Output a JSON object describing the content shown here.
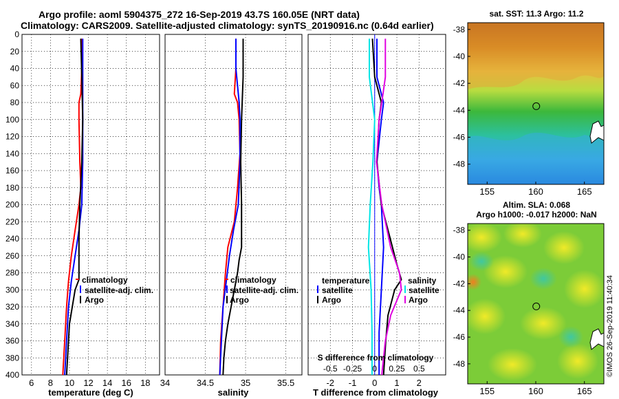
{
  "title": {
    "line1": "Argo profile: aoml 5904375_272 16-Sep-2019 43.7S 160.05E (NRT data)",
    "line2": "Climatology: CARS2009. Satellite-adjusted climatology: synTS_20190916.nc (0.64d earlier)"
  },
  "chart_data": [
    {
      "type": "line",
      "id": "temperature",
      "xlabel": "temperature (deg C)",
      "ylabel": "",
      "xlim": [
        5,
        19.5
      ],
      "ylim": [
        400,
        0
      ],
      "xticks": [
        "6",
        "8",
        "10",
        "12",
        "14",
        "16",
        "18"
      ],
      "yticks": [
        "0",
        "20",
        "40",
        "60",
        "80",
        "100",
        "120",
        "140",
        "160",
        "180",
        "200",
        "220",
        "240",
        "260",
        "280",
        "300",
        "320",
        "340",
        "360",
        "380",
        "400"
      ],
      "legend": [
        "climatology",
        "satellite-adj. clim.",
        "Argo"
      ],
      "series": [
        {
          "name": "climatology",
          "color": "#ff0000",
          "depth": [
            5,
            40,
            70,
            80,
            100,
            150,
            180,
            200,
            230,
            260,
            290,
            320,
            360,
            400
          ],
          "values": [
            11.3,
            11.3,
            11.2,
            11.0,
            11.0,
            11.1,
            11.2,
            11.0,
            10.6,
            10.2,
            9.9,
            9.7,
            9.5,
            9.3
          ]
        },
        {
          "name": "satellite-adj. clim.",
          "color": "#0000ff",
          "depth": [
            5,
            40,
            80,
            100,
            150,
            200,
            230,
            260,
            290,
            320,
            360,
            400
          ],
          "values": [
            11.4,
            11.4,
            11.4,
            11.4,
            11.4,
            11.3,
            11.0,
            10.6,
            10.2,
            9.9,
            9.7,
            9.5
          ]
        },
        {
          "name": "Argo",
          "color": "#000000",
          "depth": [
            5,
            50,
            100,
            150,
            200,
            240,
            270,
            288,
            300,
            320,
            340,
            360,
            380,
            400
          ],
          "values": [
            11.2,
            11.3,
            11.4,
            11.3,
            11.1,
            11.0,
            11.0,
            11.0,
            10.6,
            10.3,
            10.0,
            9.9,
            9.8,
            9.7
          ]
        }
      ]
    },
    {
      "type": "line",
      "id": "salinity",
      "xlabel": "salinity",
      "ylabel": "",
      "xlim": [
        34,
        35.7
      ],
      "ylim": [
        400,
        0
      ],
      "xticks": [
        "34",
        "34.5",
        "35",
        "35.5"
      ],
      "legend": [
        "climatology",
        "satellite-adj. clim.",
        "Argo"
      ],
      "series": [
        {
          "name": "climatology",
          "color": "#ff0000",
          "depth": [
            5,
            40,
            70,
            80,
            100,
            140,
            180,
            220,
            250,
            280,
            320,
            360,
            400
          ],
          "values": [
            34.88,
            34.88,
            34.86,
            34.9,
            34.92,
            34.93,
            34.9,
            34.86,
            34.78,
            34.75,
            34.72,
            34.69,
            34.68
          ]
        },
        {
          "name": "satellite-adj. clim.",
          "color": "#0000ff",
          "depth": [
            5,
            40,
            80,
            100,
            150,
            200,
            230,
            260,
            290,
            320,
            360,
            400
          ],
          "values": [
            34.88,
            34.88,
            34.92,
            34.93,
            34.93,
            34.91,
            34.85,
            34.8,
            34.76,
            34.72,
            34.7,
            34.68
          ]
        },
        {
          "name": "Argo",
          "color": "#000000",
          "depth": [
            5,
            50,
            100,
            150,
            200,
            250,
            265,
            280,
            300,
            320,
            340,
            360,
            380,
            400
          ],
          "values": [
            34.97,
            34.97,
            34.95,
            34.94,
            34.95,
            34.95,
            34.92,
            34.9,
            34.86,
            34.82,
            34.78,
            34.75,
            34.73,
            34.72
          ]
        }
      ]
    },
    {
      "type": "line",
      "id": "difference",
      "xlabel": "T difference from climatology",
      "xlabel_top": "S difference from climatology",
      "xlim": [
        -3,
        3.2
      ],
      "ylim": [
        400,
        0
      ],
      "xticks": [
        "-2",
        "-1",
        "0",
        "1",
        "2"
      ],
      "xticks_top": [
        "-0.5",
        "-0.25",
        "0",
        "0.25",
        "0.5"
      ],
      "legend_left_title": "temperature",
      "legend_left": [
        "satellite",
        "Argo"
      ],
      "legend_right_title": "salinity",
      "legend_right": [
        "satellite",
        "Argo"
      ],
      "series": [
        {
          "name": "temperature satellite",
          "color": "#0000ff",
          "depth": [
            5,
            50,
            80,
            100,
            150,
            180,
            200,
            250,
            300,
            350,
            400
          ],
          "values": [
            0.1,
            0.1,
            0.4,
            0.3,
            0.1,
            0.2,
            0.3,
            0.4,
            0.3,
            0.2,
            0.2
          ]
        },
        {
          "name": "temperature Argo",
          "color": "#000000",
          "depth": [
            5,
            50,
            80,
            100,
            150,
            200,
            240,
            270,
            288,
            300,
            330,
            360,
            400
          ],
          "values": [
            -0.1,
            0.0,
            0.3,
            0.2,
            0.1,
            0.3,
            0.7,
            1.0,
            1.2,
            0.9,
            0.6,
            0.5,
            0.4
          ]
        },
        {
          "name": "salinity satellite",
          "color": "#00e5e5",
          "depth": [
            5,
            50,
            100,
            150,
            200,
            250,
            300,
            350,
            400
          ],
          "values": [
            -0.06,
            -0.06,
            0.0,
            -0.02,
            -0.05,
            -0.07,
            -0.04,
            -0.03,
            -0.03
          ]
        },
        {
          "name": "salinity Argo",
          "color": "#e000e0",
          "depth": [
            5,
            50,
            80,
            100,
            150,
            200,
            250,
            280,
            300,
            330,
            360,
            400
          ],
          "values": [
            0.12,
            0.12,
            0.08,
            0.05,
            0.02,
            0.08,
            0.18,
            0.28,
            0.3,
            0.18,
            0.12,
            0.08
          ]
        }
      ]
    },
    {
      "type": "heatmap",
      "id": "sst-map",
      "title": "sat. SST: 11.3 Argo: 11.2",
      "xticks": [
        "155",
        "160",
        "165"
      ],
      "yticks": [
        "-38",
        "-40",
        "-42",
        "-44",
        "-46",
        "-48"
      ],
      "xlim": [
        153,
        167
      ],
      "ylim": [
        -49.5,
        -37.5
      ],
      "marker": {
        "lon": 160.05,
        "lat": -43.7
      }
    },
    {
      "type": "heatmap",
      "id": "sla-map",
      "title_line1": "Altim. SLA: 0.068",
      "title_line2": "Argo h1000: -0.017 h2000: NaN",
      "xticks": [
        "155",
        "160",
        "165"
      ],
      "yticks": [
        "-38",
        "-40",
        "-42",
        "-44",
        "-46",
        "-48"
      ],
      "xlim": [
        153,
        167
      ],
      "ylim": [
        -49.5,
        -37.5
      ],
      "marker": {
        "lon": 160.05,
        "lat": -43.7
      }
    }
  ],
  "credit": "©IMOS 26-Sep-2019 11:40:34"
}
